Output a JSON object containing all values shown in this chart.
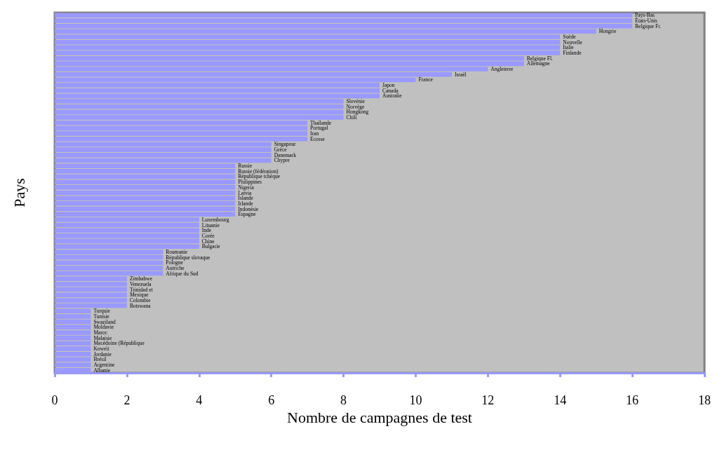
{
  "chart_data": {
    "type": "bar",
    "orientation": "horizontal",
    "xlabel": "Nombre de campagnes de test",
    "ylabel": "Pays",
    "categories": [
      "Pays-Bas",
      "États-Unis",
      "Belgique Fr.",
      "Hongrie",
      "Suède",
      "Nouvelle",
      "Italie",
      "Finlande",
      "Belgique Fl.",
      "Allemagne",
      "Angleterre",
      "Israël",
      "France",
      "Japon",
      "Canada",
      "Australie",
      "Slovénie",
      "Norvège",
      "Hongkong",
      "Chili",
      "Thaïlande",
      "Portugal",
      "Iran",
      "Ecosse",
      "Singapour",
      "Grèce",
      "Danemark",
      "Chypre",
      "Russie",
      "Russie (fédération)",
      "République tchèque",
      "Philippines",
      "Nigeria",
      "Latvia",
      "Islande",
      "Irlande",
      "Indonésie",
      "Espagne",
      "Luxembourg",
      "Lituanie",
      "Inde",
      "Corée",
      "Chine",
      "Bulgarie",
      "Roumanie",
      "République slovaque",
      "Pologne",
      "Autriche",
      "Afrique du Sud",
      "Zimbabwe",
      "Venezuela",
      "Trinidad et",
      "Mexique",
      "Colombie",
      "Botswana",
      "Turquie",
      "Tunisie",
      "Swaziland",
      "Moldavie",
      "Maroc",
      "Malaisie",
      "Macédoine (République",
      "Koweït",
      "Jordanie",
      "Brésil",
      "Argentine",
      "Albanie"
    ],
    "values": [
      16,
      16,
      16,
      15,
      14,
      14,
      14,
      14,
      13,
      13,
      12,
      11,
      10,
      9,
      9,
      9,
      8,
      8,
      8,
      8,
      7,
      7,
      7,
      7,
      6,
      6,
      6,
      6,
      5,
      5,
      5,
      5,
      5,
      5,
      5,
      5,
      5,
      5,
      4,
      4,
      4,
      4,
      4,
      4,
      3,
      3,
      3,
      3,
      3,
      2,
      2,
      2,
      2,
      2,
      2,
      1,
      1,
      1,
      1,
      1,
      1,
      1,
      1,
      1,
      1,
      1,
      1
    ],
    "color": "#9999ff",
    "xlim": [
      0,
      18
    ],
    "xticks": [
      0,
      2,
      4,
      6,
      8,
      10,
      12,
      14,
      16,
      18
    ],
    "tick_labels": "x"
  }
}
